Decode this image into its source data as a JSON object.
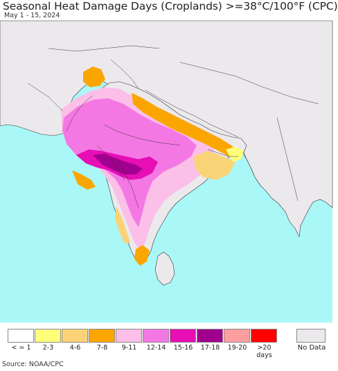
{
  "header": {
    "title": "Seasonal Heat Damage Days (Croplands) >=38°C/100°F (CPC)",
    "date_range": "May 1 - 15, 2024"
  },
  "map": {
    "colors": {
      "ocean": "#aaf7f7",
      "land_no_data": "#ece9ec",
      "border": "#333333",
      "low": "#ffffff",
      "yellow": "#ffff7a",
      "light_orange": "#fbd377",
      "orange": "#fba600",
      "light_pink": "#fbbfe8",
      "pink": "#f478e4",
      "magenta": "#e60eb4",
      "purple": "#a0008d"
    }
  },
  "legend": {
    "items": [
      {
        "label": "< = 1",
        "color": "#ffffff"
      },
      {
        "label": "2-3",
        "color": "#ffff7a"
      },
      {
        "label": "4-6",
        "color": "#fbd377"
      },
      {
        "label": "7-8",
        "color": "#fba600"
      },
      {
        "label": "9-11",
        "color": "#fbbfe8"
      },
      {
        "label": "12-14",
        "color": "#f478e4"
      },
      {
        "label": "15-16",
        "color": "#e60eb4"
      },
      {
        "label": "17-18",
        "color": "#a0008d"
      },
      {
        "label": "19-20",
        "color": "#fe9f9f"
      },
      {
        "label": ">20 days",
        "color": "#fe0000"
      }
    ],
    "no_data": {
      "label": "No Data",
      "color": "#ece9ec"
    }
  },
  "footer": {
    "source": "Source: NOAA/CPC"
  }
}
